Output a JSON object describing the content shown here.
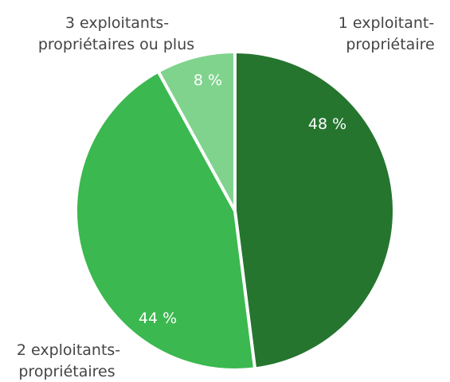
{
  "chart_data": {
    "type": "pie",
    "title": "",
    "start": "12 o'clock, clockwise",
    "slices": [
      {
        "label_lines": [
          "1 exploitant-",
          "propriétaire"
        ],
        "value": 48,
        "value_label": "48 %",
        "color": "#25752f"
      },
      {
        "label_lines": [
          "2 exploitants-",
          "propriétaires"
        ],
        "value": 44,
        "value_label": "44 %",
        "color": "#3bb84f"
      },
      {
        "label_lines": [
          "3 exploitants-",
          "propriétaires ou plus"
        ],
        "value": 8,
        "value_label": "8 %",
        "color": "#80d38d"
      }
    ]
  }
}
